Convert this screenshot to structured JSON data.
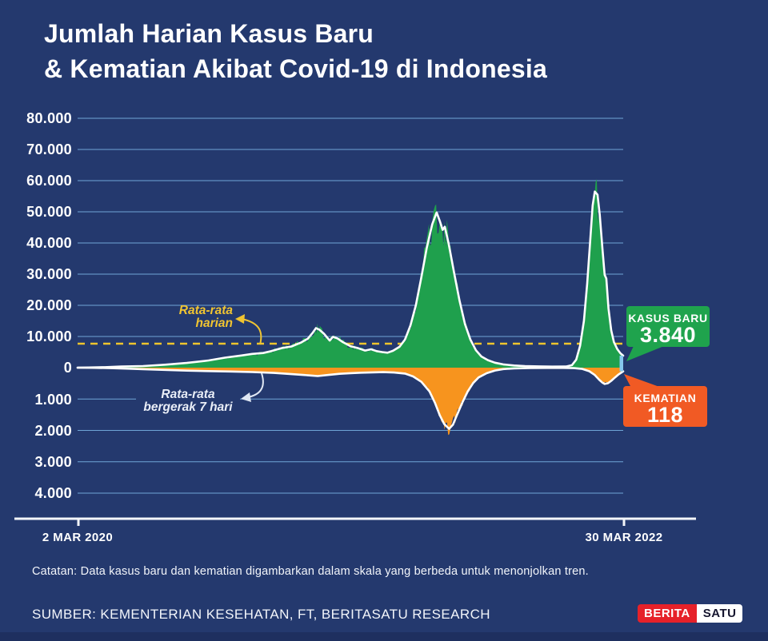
{
  "title": {
    "line1": "Jumlah Harian Kasus Baru",
    "line2": "& Kematian Akibat Covid-19 di Indonesia"
  },
  "axis": {
    "cases_ticks": [
      "80.000",
      "70.000",
      "60.000",
      "50.000",
      "40.000",
      "30.000",
      "20.000",
      "10.000",
      "0"
    ],
    "deaths_ticks": [
      "1.000",
      "2.000",
      "3.000",
      "4.000"
    ],
    "x_start_label": "2 MAR 2020",
    "x_end_label": "30 MAR 2022"
  },
  "annotations": {
    "daily_avg": {
      "line1": "Rata-rata",
      "line2": "harian"
    },
    "moving_avg": {
      "line1": "Rata-rata",
      "line2": "bergerak 7 hari"
    }
  },
  "callouts": {
    "cases": {
      "label": "KASUS BARU",
      "value": "3.840",
      "color": "#1fa34d"
    },
    "deaths": {
      "label": "KEMATIAN",
      "value": "118",
      "color": "#f15a24"
    }
  },
  "footer": {
    "note": "Catatan: Data kasus baru dan kematian digambarkan dalam skala yang berbeda untuk menonjolkan tren.",
    "source": "SUMBER: KEMENTERIAN KESEHATAN, FT, BERITASATU RESEARCH",
    "logo": {
      "part1": "BERITA",
      "part2": "SATU"
    }
  },
  "chart_data": {
    "type": "area",
    "title": "Jumlah Harian Kasus Baru & Kematian Akibat Covid-19 di Indonesia",
    "x_range": [
      "2 MAR 2020",
      "30 MAR 2022"
    ],
    "grid": true,
    "cases_axis": {
      "max": 80000,
      "ticks": [
        80000,
        70000,
        60000,
        50000,
        40000,
        30000,
        20000,
        10000,
        0
      ]
    },
    "deaths_axis": {
      "max": 4000,
      "ticks": [
        1000,
        2000,
        3000,
        4000
      ]
    },
    "daily_average_cases": 7700,
    "latest": {
      "cases": 3840,
      "deaths": 118,
      "highlight_color": "#86c9ee"
    },
    "colors": {
      "background": "#24396e",
      "gridline": "#74abdd",
      "dashed_average": "#eec52d"
    },
    "series": [
      {
        "name": "kasus-baru (rata-rata bergerak 7 hari, area = data harian)",
        "axis": "cases",
        "color": "#ffffff",
        "area_color": "#1fa04d",
        "jitter": 0.14,
        "points": [
          [
            0,
            0
          ],
          [
            0.02,
            60
          ],
          [
            0.05,
            160
          ],
          [
            0.08,
            350
          ],
          [
            0.12,
            520
          ],
          [
            0.16,
            950
          ],
          [
            0.2,
            1500
          ],
          [
            0.24,
            2300
          ],
          [
            0.27,
            3200
          ],
          [
            0.3,
            3900
          ],
          [
            0.32,
            4400
          ],
          [
            0.34,
            4700
          ],
          [
            0.355,
            5300
          ],
          [
            0.375,
            6300
          ],
          [
            0.392,
            6800
          ],
          [
            0.41,
            8100
          ],
          [
            0.422,
            9300
          ],
          [
            0.43,
            11000
          ],
          [
            0.437,
            12700
          ],
          [
            0.443,
            12200
          ],
          [
            0.452,
            10800
          ],
          [
            0.462,
            8700
          ],
          [
            0.468,
            9900
          ],
          [
            0.476,
            9400
          ],
          [
            0.486,
            8200
          ],
          [
            0.5,
            6900
          ],
          [
            0.515,
            6200
          ],
          [
            0.527,
            5500
          ],
          [
            0.538,
            5900
          ],
          [
            0.548,
            5300
          ],
          [
            0.558,
            5000
          ],
          [
            0.568,
            4800
          ],
          [
            0.578,
            5400
          ],
          [
            0.59,
            6700
          ],
          [
            0.6,
            9000
          ],
          [
            0.61,
            13500
          ],
          [
            0.62,
            20000
          ],
          [
            0.63,
            29000
          ],
          [
            0.64,
            38500
          ],
          [
            0.65,
            46000
          ],
          [
            0.658,
            49800
          ],
          [
            0.664,
            47000
          ],
          [
            0.669,
            44200
          ],
          [
            0.673,
            45200
          ],
          [
            0.68,
            39800
          ],
          [
            0.69,
            30500
          ],
          [
            0.7,
            21500
          ],
          [
            0.71,
            14000
          ],
          [
            0.72,
            9000
          ],
          [
            0.73,
            5600
          ],
          [
            0.74,
            3600
          ],
          [
            0.752,
            2400
          ],
          [
            0.765,
            1600
          ],
          [
            0.78,
            1050
          ],
          [
            0.8,
            700
          ],
          [
            0.82,
            500
          ],
          [
            0.845,
            400
          ],
          [
            0.87,
            330
          ],
          [
            0.895,
            360
          ],
          [
            0.906,
            800
          ],
          [
            0.914,
            2600
          ],
          [
            0.921,
            7000
          ],
          [
            0.928,
            15000
          ],
          [
            0.934,
            27000
          ],
          [
            0.94,
            42000
          ],
          [
            0.944,
            52000
          ],
          [
            0.948,
            56500
          ],
          [
            0.953,
            55500
          ],
          [
            0.957,
            49000
          ],
          [
            0.962,
            38000
          ],
          [
            0.966,
            29800
          ],
          [
            0.969,
            28600
          ],
          [
            0.973,
            19000
          ],
          [
            0.978,
            12000
          ],
          [
            0.983,
            8200
          ],
          [
            0.989,
            6000
          ],
          [
            0.995,
            4600
          ],
          [
            1,
            3840
          ]
        ]
      },
      {
        "name": "kematian (rata-rata bergerak 7 hari, area = data harian)",
        "axis": "deaths",
        "color": "#ffffff",
        "area_color": "#f7941e",
        "jitter": 0.12,
        "points": [
          [
            0,
            0
          ],
          [
            0.03,
            5
          ],
          [
            0.06,
            15
          ],
          [
            0.09,
            30
          ],
          [
            0.12,
            48
          ],
          [
            0.16,
            72
          ],
          [
            0.2,
            95
          ],
          [
            0.24,
            110
          ],
          [
            0.28,
            122
          ],
          [
            0.32,
            140
          ],
          [
            0.36,
            168
          ],
          [
            0.4,
            215
          ],
          [
            0.425,
            248
          ],
          [
            0.44,
            268
          ],
          [
            0.46,
            232
          ],
          [
            0.48,
            196
          ],
          [
            0.5,
            176
          ],
          [
            0.52,
            160
          ],
          [
            0.54,
            150
          ],
          [
            0.56,
            142
          ],
          [
            0.58,
            156
          ],
          [
            0.6,
            188
          ],
          [
            0.615,
            280
          ],
          [
            0.63,
            450
          ],
          [
            0.645,
            760
          ],
          [
            0.655,
            1120
          ],
          [
            0.664,
            1520
          ],
          [
            0.672,
            1800
          ],
          [
            0.681,
            1950
          ],
          [
            0.688,
            1820
          ],
          [
            0.695,
            1520
          ],
          [
            0.705,
            1120
          ],
          [
            0.715,
            760
          ],
          [
            0.725,
            490
          ],
          [
            0.735,
            310
          ],
          [
            0.75,
            175
          ],
          [
            0.765,
            92
          ],
          [
            0.78,
            46
          ],
          [
            0.8,
            22
          ],
          [
            0.83,
            12
          ],
          [
            0.86,
            8
          ],
          [
            0.89,
            8
          ],
          [
            0.91,
            16
          ],
          [
            0.925,
            42
          ],
          [
            0.938,
            115
          ],
          [
            0.948,
            235
          ],
          [
            0.956,
            385
          ],
          [
            0.962,
            480
          ],
          [
            0.966,
            520
          ],
          [
            0.972,
            498
          ],
          [
            0.978,
            420
          ],
          [
            0.985,
            312
          ],
          [
            0.991,
            222
          ],
          [
            0.996,
            162
          ],
          [
            1,
            118
          ]
        ]
      }
    ]
  }
}
